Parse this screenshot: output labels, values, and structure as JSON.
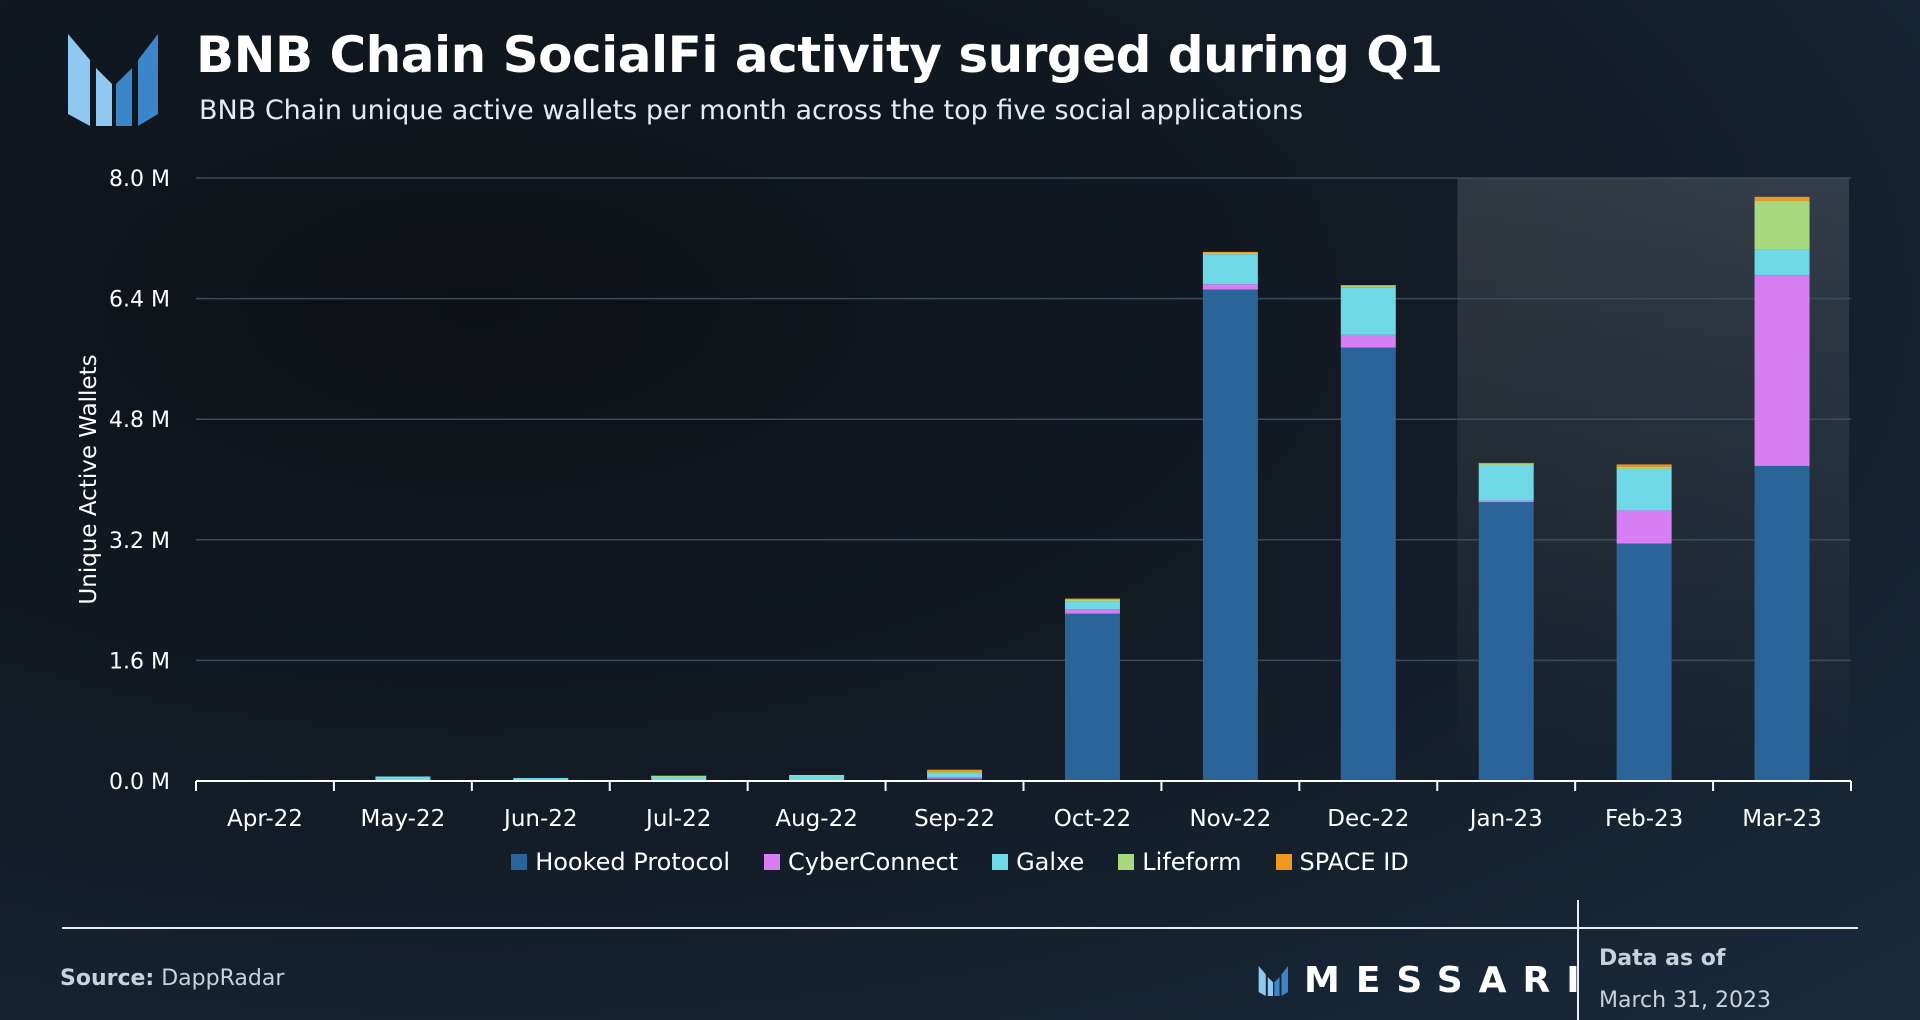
{
  "header": {
    "title": "BNB Chain SocialFi activity surged during Q1",
    "subtitle": "BNB Chain unique active wallets per month across the top five social applications"
  },
  "footer": {
    "source_label": "Source:",
    "source_value": "DappRadar",
    "brand": "MESSARI",
    "data_as_of_label": "Data as of",
    "data_as_of_date": "March 31, 2023"
  },
  "colors": {
    "hooked": "#2a6499",
    "cyberconnect": "#d77ef5",
    "galxe": "#6fd8e6",
    "lifeform": "#a7d97e",
    "spaceid": "#f3961e",
    "grid": "#3b4b5b",
    "logo_light": "#8ec7ef",
    "logo_dark": "#3c85c8"
  },
  "chart_data": {
    "type": "bar",
    "stacked": true,
    "title": "BNB Chain SocialFi activity surged during Q1",
    "xlabel": "",
    "ylabel": "Unique Active Wallets",
    "ylim": [
      0,
      8
    ],
    "yunit": "M",
    "yticks": [
      "0.0 M",
      "1.6 M",
      "3.2 M",
      "4.8 M",
      "6.4 M",
      "8.0 M"
    ],
    "ytick_values": [
      0,
      1.6,
      3.2,
      4.8,
      6.4,
      8.0
    ],
    "grid": true,
    "legend_position": "bottom",
    "highlight_categories": [
      "Jan-23",
      "Feb-23",
      "Mar-23"
    ],
    "categories": [
      "Apr-22",
      "May-22",
      "Jun-22",
      "Jul-22",
      "Aug-22",
      "Sep-22",
      "Oct-22",
      "Nov-22",
      "Dec-22",
      "Jan-23",
      "Feb-23",
      "Mar-23"
    ],
    "series": [
      {
        "name": "Hooked Protocol",
        "color_key": "hooked",
        "values": [
          0,
          0,
          0,
          0.01,
          0.01,
          0.03,
          2.22,
          6.52,
          5.75,
          3.7,
          3.15,
          4.18
        ]
      },
      {
        "name": "CyberConnect",
        "color_key": "cyberconnect",
        "values": [
          0,
          0,
          0,
          0,
          0,
          0.02,
          0.06,
          0.07,
          0.17,
          0.02,
          0.44,
          2.53
        ]
      },
      {
        "name": "Galxe",
        "color_key": "galxe",
        "values": [
          0.01,
          0.06,
          0.04,
          0.05,
          0.06,
          0.06,
          0.1,
          0.4,
          0.63,
          0.48,
          0.55,
          0.34
        ]
      },
      {
        "name": "Lifeform",
        "color_key": "lifeform",
        "values": [
          0,
          0,
          0,
          0.01,
          0.01,
          0.02,
          0.03,
          0.02,
          0.02,
          0.01,
          0.03,
          0.65
        ]
      },
      {
        "name": "SPACE ID",
        "color_key": "spaceid",
        "values": [
          0,
          0,
          0,
          0,
          0,
          0.02,
          0.01,
          0.01,
          0.01,
          0.01,
          0.03,
          0.05
        ]
      }
    ]
  }
}
